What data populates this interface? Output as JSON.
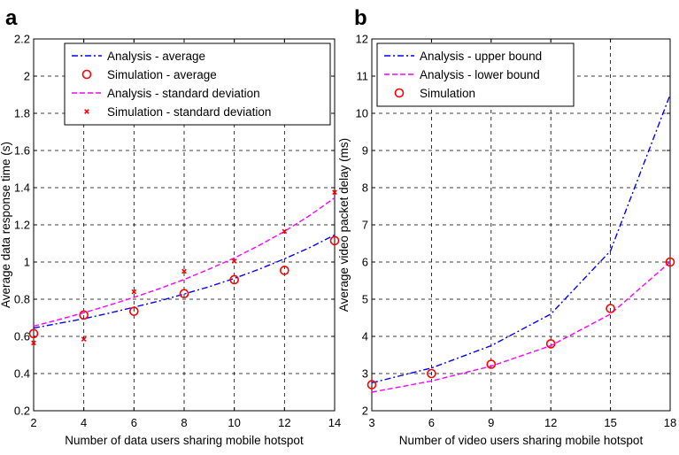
{
  "colors": {
    "blue": "#0000ff",
    "magenta": "#ff00ff",
    "red": "#ff0000",
    "grid": "#000000"
  },
  "chart_data": [
    {
      "type": "line",
      "panel_label": "a",
      "title": "",
      "xlabel": "Number of data users sharing mobile hotspot",
      "ylabel": "Average data response time (s)",
      "xlim": [
        2,
        14
      ],
      "ylim": [
        0.2,
        2.2
      ],
      "xticks": [
        2,
        4,
        6,
        8,
        10,
        12,
        14
      ],
      "yticks": [
        0.2,
        0.4,
        0.6,
        0.8,
        1,
        1.2,
        1.4,
        1.6,
        1.8,
        2,
        2.2
      ],
      "grid": true,
      "legend_position": "top-right",
      "series": [
        {
          "name": "Analysis - average",
          "style": "dashdot",
          "color": "#0000ff",
          "marker": "none",
          "x": [
            2,
            3,
            4,
            5,
            6,
            7,
            8,
            9,
            10,
            11,
            12,
            13,
            14
          ],
          "y": [
            0.645,
            0.67,
            0.695,
            0.725,
            0.757,
            0.79,
            0.828,
            0.867,
            0.912,
            0.962,
            1.017,
            1.077,
            1.145
          ]
        },
        {
          "name": "Simulation - average",
          "style": "none",
          "color": "#ff0000",
          "marker": "circle",
          "x": [
            2,
            4,
            6,
            8,
            10,
            12,
            14
          ],
          "y": [
            0.615,
            0.715,
            0.735,
            0.83,
            0.905,
            0.955,
            1.115
          ]
        },
        {
          "name": "Analysis - standard deviation",
          "style": "dashed",
          "color": "#ff00ff",
          "marker": "none",
          "x": [
            2,
            3,
            4,
            5,
            6,
            7,
            8,
            9,
            10,
            11,
            12,
            13,
            14
          ],
          "y": [
            0.655,
            0.69,
            0.727,
            0.767,
            0.81,
            0.856,
            0.906,
            0.962,
            1.022,
            1.09,
            1.165,
            1.25,
            1.345
          ]
        },
        {
          "name": "Simulation - standard deviation",
          "style": "none",
          "color": "#ff0000",
          "marker": "x",
          "x": [
            2,
            4,
            6,
            8,
            10,
            12,
            14
          ],
          "y": [
            0.565,
            0.585,
            0.84,
            0.95,
            1.005,
            1.165,
            1.375
          ]
        }
      ]
    },
    {
      "type": "line",
      "panel_label": "b",
      "title": "",
      "xlabel": "Number of video users sharing mobile hotspot",
      "ylabel": "Average video packet delay (ms)",
      "xlim": [
        3,
        18
      ],
      "ylim": [
        2,
        12
      ],
      "xticks": [
        3,
        6,
        9,
        12,
        15,
        18
      ],
      "yticks": [
        2,
        3,
        4,
        5,
        6,
        7,
        8,
        9,
        10,
        11,
        12
      ],
      "grid": true,
      "legend_position": "top-left",
      "series": [
        {
          "name": "Analysis - upper bound",
          "style": "dashdot",
          "color": "#0000ff",
          "marker": "none",
          "x": [
            3,
            6,
            9,
            12,
            15,
            18
          ],
          "y": [
            2.75,
            3.15,
            3.75,
            4.6,
            6.3,
            10.5
          ]
        },
        {
          "name": "Analysis - lower bound",
          "style": "dashed",
          "color": "#ff00ff",
          "marker": "none",
          "x": [
            3,
            6,
            9,
            12,
            15,
            18
          ],
          "y": [
            2.5,
            2.8,
            3.2,
            3.75,
            4.6,
            6.0
          ]
        },
        {
          "name": "Simulation",
          "style": "none",
          "color": "#ff0000",
          "marker": "circle",
          "x": [
            3,
            6,
            9,
            12,
            15,
            18
          ],
          "y": [
            2.7,
            3.0,
            3.25,
            3.8,
            4.75,
            6.0
          ]
        }
      ]
    }
  ]
}
